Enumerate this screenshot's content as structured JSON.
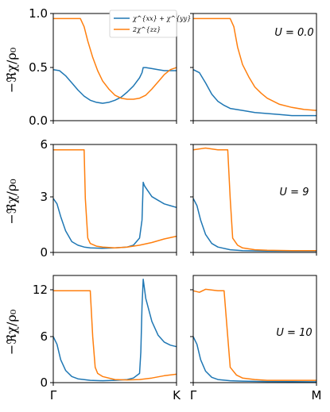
{
  "chart_data": {
    "type": "line",
    "legend": {
      "location": "top-right of first panel",
      "entries": [
        {
          "label": "χ^{xx} + χ^{yy}",
          "color": "#1f77b4"
        },
        {
          "label": "2χ^{zz}",
          "color": "#ff7f0e"
        }
      ]
    },
    "ylabel": "−ℜχ/ρ₀",
    "x_ticks": {
      "left": [
        "Γ",
        "K"
      ],
      "right": [
        "Γ",
        "M"
      ]
    },
    "rows": [
      {
        "label": "U = 0.0",
        "ylim": [
          0,
          1.05
        ],
        "yticks": [
          "0.0",
          "0.5",
          "1.0"
        ],
        "panels": [
          {
            "path": "Γ–K",
            "series": [
              {
                "name": "χ^{xx} + χ^{yy}",
                "color": "#1f77b4",
                "x": [
                  0,
                  0.05,
                  0.1,
                  0.15,
                  0.2,
                  0.25,
                  0.3,
                  0.35,
                  0.4,
                  0.45,
                  0.5,
                  0.55,
                  0.6,
                  0.65,
                  0.7,
                  0.72,
                  0.73,
                  0.75,
                  0.8,
                  0.85,
                  0.9,
                  0.95,
                  1.0
                ],
                "y": [
                  0.5,
                  0.49,
                  0.44,
                  0.37,
                  0.3,
                  0.24,
                  0.2,
                  0.18,
                  0.17,
                  0.18,
                  0.2,
                  0.23,
                  0.28,
                  0.34,
                  0.42,
                  0.47,
                  0.52,
                  0.52,
                  0.51,
                  0.5,
                  0.49,
                  0.49,
                  0.49
                ]
              },
              {
                "name": "2χ^{zz}",
                "color": "#ff7f0e",
                "x": [
                  0,
                  0.1,
                  0.2,
                  0.22,
                  0.25,
                  0.28,
                  0.32,
                  0.36,
                  0.4,
                  0.45,
                  0.5,
                  0.55,
                  0.6,
                  0.65,
                  0.7,
                  0.75,
                  0.8,
                  0.85,
                  0.9,
                  0.95,
                  1.0
                ],
                "y": [
                  1.0,
                  1.0,
                  1.0,
                  1.0,
                  0.92,
                  0.78,
                  0.62,
                  0.49,
                  0.39,
                  0.31,
                  0.25,
                  0.22,
                  0.21,
                  0.21,
                  0.22,
                  0.25,
                  0.31,
                  0.38,
                  0.45,
                  0.5,
                  0.52
                ]
              }
            ]
          },
          {
            "path": "Γ–M",
            "series": [
              {
                "name": "χ^{xx} + χ^{yy}",
                "color": "#1f77b4",
                "x": [
                  0,
                  0.05,
                  0.1,
                  0.15,
                  0.2,
                  0.25,
                  0.3,
                  0.4,
                  0.5,
                  0.6,
                  0.7,
                  0.8,
                  0.9,
                  1.0
                ],
                "y": [
                  0.5,
                  0.47,
                  0.37,
                  0.26,
                  0.19,
                  0.15,
                  0.12,
                  0.1,
                  0.08,
                  0.07,
                  0.06,
                  0.05,
                  0.05,
                  0.05
                ]
              },
              {
                "name": "2χ^{zz}",
                "color": "#ff7f0e",
                "x": [
                  0,
                  0.1,
                  0.2,
                  0.3,
                  0.33,
                  0.36,
                  0.4,
                  0.45,
                  0.5,
                  0.55,
                  0.6,
                  0.7,
                  0.8,
                  0.9,
                  1.0
                ],
                "y": [
                  1.0,
                  1.0,
                  1.0,
                  1.0,
                  0.92,
                  0.72,
                  0.55,
                  0.43,
                  0.33,
                  0.27,
                  0.22,
                  0.16,
                  0.13,
                  0.11,
                  0.1
                ]
              }
            ]
          }
        ]
      },
      {
        "label": "U = 9",
        "ylim": [
          0,
          6
        ],
        "yticks": [
          "0",
          "3",
          "6"
        ],
        "panels": [
          {
            "path": "Γ–K",
            "series": [
              {
                "name": "χ^{xx} + χ^{yy}",
                "color": "#1f77b4",
                "x": [
                  0,
                  0.03,
                  0.06,
                  0.1,
                  0.15,
                  0.2,
                  0.25,
                  0.3,
                  0.4,
                  0.5,
                  0.6,
                  0.65,
                  0.7,
                  0.72,
                  0.73,
                  0.74,
                  0.76,
                  0.8,
                  0.85,
                  0.9,
                  0.95,
                  1.0
                ],
                "y": [
                  3.0,
                  2.7,
                  2.0,
                  1.2,
                  0.6,
                  0.4,
                  0.3,
                  0.25,
                  0.23,
                  0.25,
                  0.3,
                  0.4,
                  0.8,
                  1.8,
                  3.9,
                  3.7,
                  3.5,
                  3.1,
                  2.9,
                  2.7,
                  2.6,
                  2.5
                ]
              },
              {
                "name": "2χ^{zz}",
                "color": "#ff7f0e",
                "x": [
                  0,
                  0.1,
                  0.2,
                  0.25,
                  0.26,
                  0.28,
                  0.3,
                  0.35,
                  0.4,
                  0.5,
                  0.6,
                  0.7,
                  0.8,
                  0.9,
                  1.0
                ],
                "y": [
                  5.7,
                  5.7,
                  5.7,
                  5.7,
                  3.0,
                  0.8,
                  0.5,
                  0.35,
                  0.3,
                  0.25,
                  0.3,
                  0.4,
                  0.55,
                  0.75,
                  0.9
                ]
              }
            ]
          },
          {
            "path": "Γ–M",
            "series": [
              {
                "name": "χ^{xx} + χ^{yy}",
                "color": "#1f77b4",
                "x": [
                  0,
                  0.03,
                  0.06,
                  0.1,
                  0.15,
                  0.2,
                  0.3,
                  0.4,
                  0.6,
                  0.8,
                  1.0
                ],
                "y": [
                  3.0,
                  2.6,
                  1.8,
                  1.0,
                  0.5,
                  0.3,
                  0.15,
                  0.1,
                  0.08,
                  0.07,
                  0.07
                ]
              },
              {
                "name": "2χ^{zz}",
                "color": "#ff7f0e",
                "x": [
                  0,
                  0.1,
                  0.2,
                  0.28,
                  0.3,
                  0.32,
                  0.36,
                  0.4,
                  0.5,
                  0.6,
                  0.8,
                  1.0
                ],
                "y": [
                  5.7,
                  5.8,
                  5.7,
                  5.7,
                  3.0,
                  0.8,
                  0.4,
                  0.25,
                  0.15,
                  0.12,
                  0.1,
                  0.1
                ]
              }
            ]
          }
        ]
      },
      {
        "label": "U = 10",
        "ylim": [
          0,
          14
        ],
        "yticks": [
          "0",
          "6",
          "12"
        ],
        "panels": [
          {
            "path": "Γ–K",
            "series": [
              {
                "name": "χ^{xx} + χ^{yy}",
                "color": "#1f77b4",
                "x": [
                  0,
                  0.03,
                  0.06,
                  0.1,
                  0.15,
                  0.2,
                  0.3,
                  0.4,
                  0.5,
                  0.6,
                  0.65,
                  0.7,
                  0.71,
                  0.72,
                  0.73,
                  0.75,
                  0.8,
                  0.85,
                  0.9,
                  0.95,
                  1.0
                ],
                "y": [
                  6.0,
                  5.0,
                  3.0,
                  1.6,
                  0.8,
                  0.5,
                  0.3,
                  0.25,
                  0.3,
                  0.4,
                  0.6,
                  1.2,
                  4.0,
                  10.0,
                  13.5,
                  11.0,
                  8.0,
                  6.2,
                  5.3,
                  4.9,
                  4.7
                ]
              },
              {
                "name": "2χ^{zz}",
                "color": "#ff7f0e",
                "x": [
                  0,
                  0.1,
                  0.2,
                  0.3,
                  0.32,
                  0.34,
                  0.36,
                  0.4,
                  0.5,
                  0.6,
                  0.7,
                  0.8,
                  0.9,
                  1.0
                ],
                "y": [
                  12.0,
                  12.0,
                  12.0,
                  12.0,
                  6.0,
                  2.0,
                  1.2,
                  0.8,
                  0.4,
                  0.35,
                  0.4,
                  0.6,
                  0.9,
                  1.1
                ]
              }
            ]
          },
          {
            "path": "Γ–M",
            "series": [
              {
                "name": "χ^{xx} + χ^{yy}",
                "color": "#1f77b4",
                "x": [
                  0,
                  0.03,
                  0.06,
                  0.1,
                  0.15,
                  0.2,
                  0.3,
                  0.4,
                  0.6,
                  0.8,
                  1.0
                ],
                "y": [
                  6.0,
                  5.0,
                  3.0,
                  1.5,
                  0.7,
                  0.4,
                  0.25,
                  0.2,
                  0.15,
                  0.12,
                  0.1
                ]
              },
              {
                "name": "2χ^{zz}",
                "color": "#ff7f0e",
                "x": [
                  0,
                  0.05,
                  0.1,
                  0.2,
                  0.25,
                  0.28,
                  0.3,
                  0.35,
                  0.4,
                  0.5,
                  0.6,
                  0.8,
                  1.0
                ],
                "y": [
                  12.0,
                  11.8,
                  12.2,
                  12.0,
                  12.0,
                  6.0,
                  2.0,
                  1.0,
                  0.6,
                  0.4,
                  0.3,
                  0.3,
                  0.3
                ]
              }
            ]
          }
        ]
      }
    ]
  }
}
